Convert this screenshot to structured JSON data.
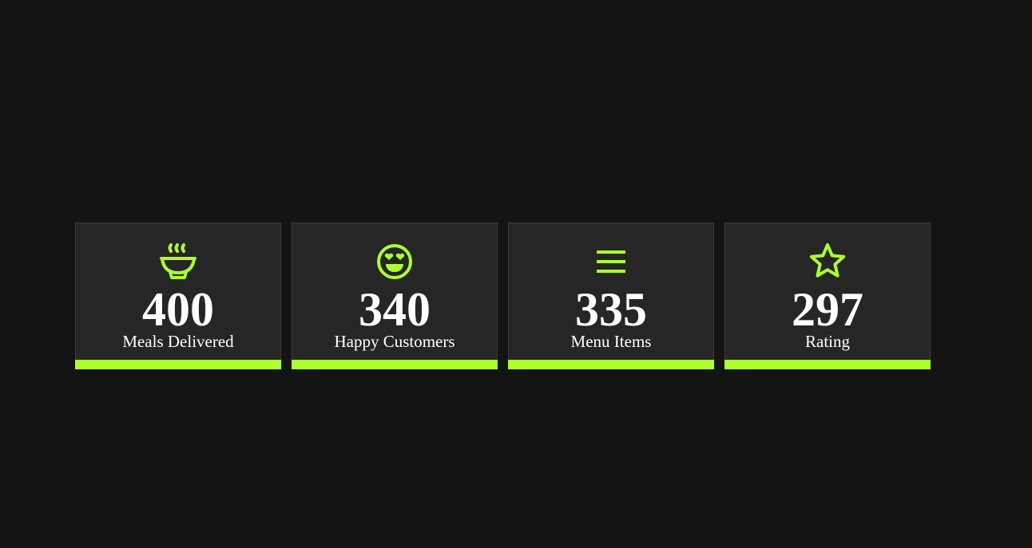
{
  "theme": {
    "accent": "#adff2f",
    "background": "#141414",
    "card_background": "#262626",
    "text": "#ffffff"
  },
  "stats": [
    {
      "icon": "bowl-steam-icon",
      "value": "400",
      "label": "Meals Delivered"
    },
    {
      "icon": "heart-eyes-icon",
      "value": "340",
      "label": "Happy Customers"
    },
    {
      "icon": "menu-bars-icon",
      "value": "335",
      "label": "Menu Items"
    },
    {
      "icon": "star-icon",
      "value": "297",
      "label": "Rating"
    }
  ]
}
